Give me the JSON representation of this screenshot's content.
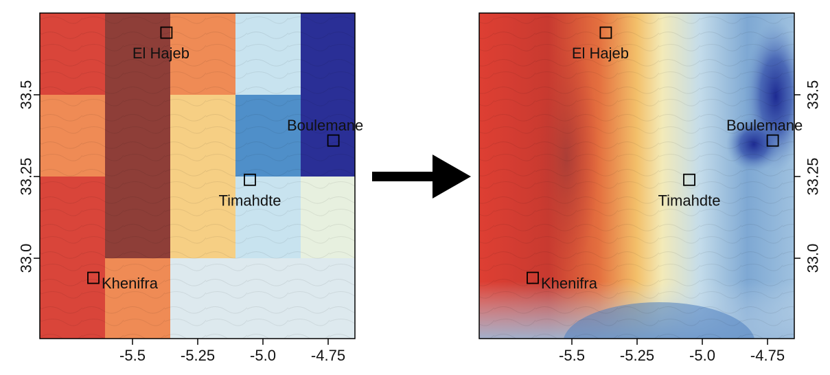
{
  "panels": [
    {
      "id": "coarse",
      "x_ticks": [
        "-5.5",
        "-5.25",
        "-5.0",
        "-4.75"
      ],
      "y_ticks": [
        "33.5",
        "33.25",
        "33.0"
      ],
      "y_axis_side": "left"
    },
    {
      "id": "smooth",
      "x_ticks": [
        "-5.5",
        "-5.25",
        "-5.0",
        "-4.75"
      ],
      "y_ticks": [
        "33.5",
        "33.25",
        "33.0"
      ],
      "y_axis_side": "right"
    }
  ],
  "cities": [
    {
      "name": "El Hajeb",
      "lon": -5.37,
      "lat": 33.69
    },
    {
      "name": "Boulemane",
      "lon": -4.73,
      "lat": 33.36
    },
    {
      "name": "Timahdte",
      "lon": -5.05,
      "lat": 33.24
    },
    {
      "name": "Khenifra",
      "lon": -5.65,
      "lat": 32.94
    }
  ],
  "colors": {
    "grid_palette": [
      "#d9453a",
      "#8e3e38",
      "#ef8b55",
      "#f6cf84",
      "#c8e3ef",
      "#4f8fc9",
      "#2a2f96",
      "#e7f0df",
      "#dde9ee"
    ],
    "arrow": "#000000"
  },
  "icons": {
    "city_marker": "square-marker-icon",
    "arrow": "right-arrow-icon"
  }
}
